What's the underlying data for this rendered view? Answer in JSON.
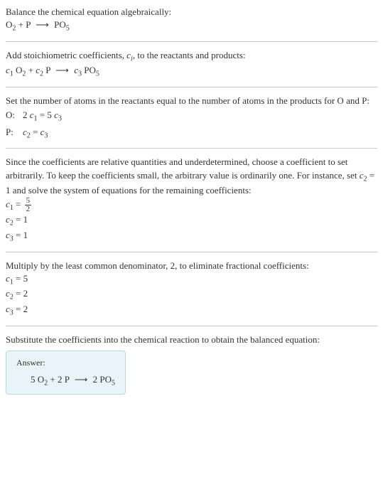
{
  "intro": {
    "line1": "Balance the chemical equation algebraically:",
    "equation_parts": {
      "o2": "O",
      "o2_sub": "2",
      "plus": " + P ",
      "arrow": "⟶",
      "po5": " PO",
      "po5_sub": "5"
    }
  },
  "step1": {
    "text_pre": "Add stoichiometric coefficients, ",
    "ci": "c",
    "ci_sub": "i",
    "text_post": ", to the reactants and products:",
    "eq": {
      "c1": "c",
      "c1_sub": "1",
      "sp1": " O",
      "o2_sub": "2",
      "plus": " + ",
      "c2": "c",
      "c2_sub": "2",
      "sp2": " P ",
      "arrow": "⟶",
      "sp3": " ",
      "c3": "c",
      "c3_sub": "3",
      "sp4": " PO",
      "po5_sub": "5"
    }
  },
  "step2": {
    "text": "Set the number of atoms in the reactants equal to the number of atoms in the products for O and P:",
    "row_o_label": "O: ",
    "row_o_eq_pre": "2 ",
    "row_o_c1": "c",
    "row_o_c1_sub": "1",
    "row_o_mid": " = 5 ",
    "row_o_c3": "c",
    "row_o_c3_sub": "3",
    "row_p_label": "P: ",
    "row_p_c2": "c",
    "row_p_c2_sub": "2",
    "row_p_mid": " = ",
    "row_p_c3": "c",
    "row_p_c3_sub": "3"
  },
  "step3": {
    "text_pre": "Since the coefficients are relative quantities and underdetermined, choose a coefficient to set arbitrarily. To keep the coefficients small, the arbitrary value is ordinarily one. For instance, set ",
    "c2": "c",
    "c2_sub": "2",
    "text_post": " = 1 and solve the system of equations for the remaining coefficients:",
    "eq1_c": "c",
    "eq1_sub": "1",
    "eq1_eq": " = ",
    "eq1_num": "5",
    "eq1_den": "2",
    "eq2_c": "c",
    "eq2_sub": "2",
    "eq2_val": " = 1",
    "eq3_c": "c",
    "eq3_sub": "3",
    "eq3_val": " = 1"
  },
  "step4": {
    "text": "Multiply by the least common denominator, 2, to eliminate fractional coefficients:",
    "eq1_c": "c",
    "eq1_sub": "1",
    "eq1_val": " = 5",
    "eq2_c": "c",
    "eq2_sub": "2",
    "eq2_val": " = 2",
    "eq3_c": "c",
    "eq3_sub": "3",
    "eq3_val": " = 2"
  },
  "step5": {
    "text": "Substitute the coefficients into the chemical reaction to obtain the balanced equation:",
    "answer_label": "Answer:",
    "answer_eq": {
      "pre": "5 O",
      "o2_sub": "2",
      "mid": " + 2 P ",
      "arrow": "⟶",
      "post": " 2 PO",
      "po5_sub": "5"
    }
  },
  "colors": {
    "text": "#333333",
    "hr": "#cccccc",
    "box_bg": "#e8f4f8",
    "box_border": "#b8d8e8"
  }
}
